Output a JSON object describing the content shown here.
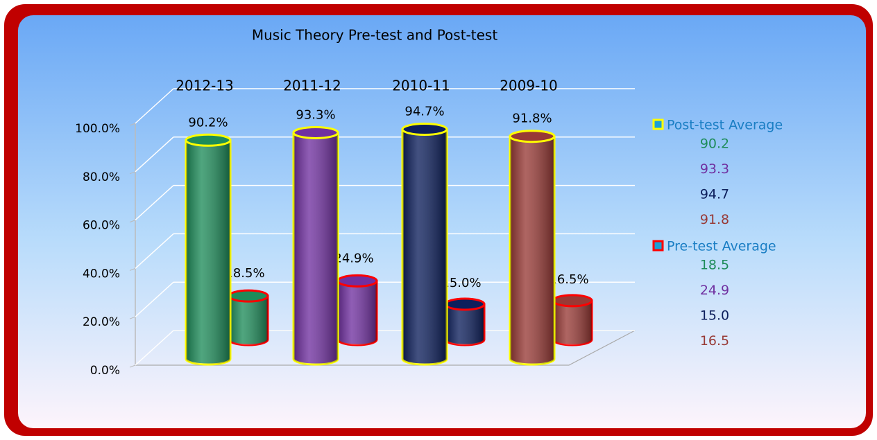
{
  "chart_data": {
    "type": "bar",
    "style": "3d-cylinder",
    "title": "Music Theory Pre-test and Post-test",
    "categories": [
      "2012-13",
      "2011-12",
      "2010-11",
      "2009-10"
    ],
    "category_colors": [
      "#1e8c5a",
      "#7030a0",
      "#0d1f5c",
      "#983a36"
    ],
    "series": [
      {
        "name": "Post-test Average",
        "color": "#ffff00",
        "values": [
          90.2,
          93.3,
          94.7,
          91.8
        ],
        "value_labels": [
          "90.2%",
          "93.3%",
          "94.7%",
          "91.8%"
        ],
        "legend_values": [
          "90.2",
          "93.3",
          "94.7",
          "91.8"
        ]
      },
      {
        "name": "Pre-test Average",
        "color": "#ff0000",
        "values": [
          18.5,
          24.9,
          15.0,
          16.5
        ],
        "value_labels": [
          "18.5%",
          "24.9%",
          "15.0%",
          "16.5%"
        ],
        "legend_values": [
          "18.5",
          "24.9",
          "15.0",
          "16.5"
        ]
      }
    ],
    "ylim": [
      0,
      100
    ],
    "yticks": [
      {
        "value": 0,
        "label": "0.0%"
      },
      {
        "value": 20,
        "label": "20.0%"
      },
      {
        "value": 40,
        "label": "40.0%"
      },
      {
        "value": 60,
        "label": "60.0%"
      },
      {
        "value": 80,
        "label": "80.0%"
      },
      {
        "value": 100,
        "label": "100.0%"
      }
    ],
    "grid": true,
    "legend": "right"
  }
}
